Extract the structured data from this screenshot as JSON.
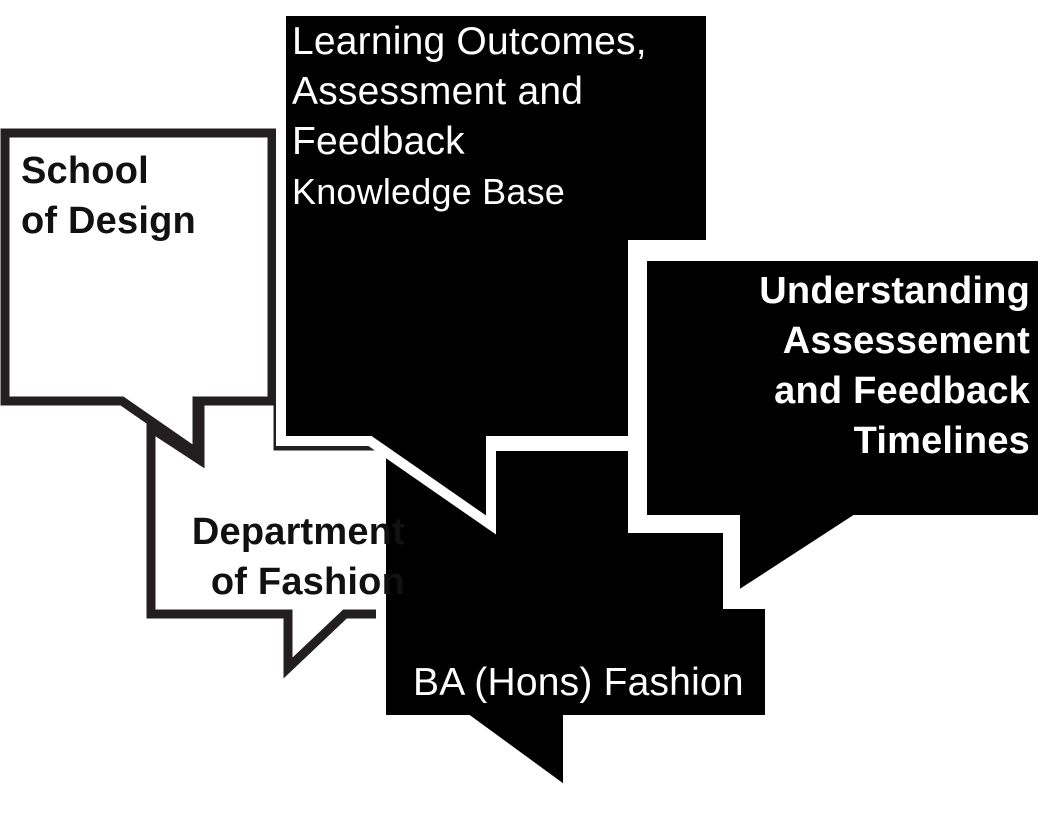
{
  "diagram": {
    "bubbles": [
      {
        "id": "school",
        "lines": [
          "School",
          "of Design"
        ]
      },
      {
        "id": "outcomes",
        "lines": [
          "Learning Outcomes,",
          "Assessment and",
          "Feedback"
        ],
        "subline": "Knowledge Base"
      },
      {
        "id": "timelines",
        "lines": [
          "Understanding",
          "Assessement",
          "and Feedback",
          "Timelines"
        ]
      },
      {
        "id": "department",
        "lines": [
          "Department",
          "of Fashion"
        ]
      },
      {
        "id": "programme",
        "lines": [
          "BA (Hons) Fashion"
        ]
      }
    ],
    "colors": {
      "fill_dark": "#000000",
      "fill_light": "#ffffff",
      "outline": "#231f20",
      "text_on_dark": "#ffffff",
      "text_on_light": "#111111"
    }
  }
}
